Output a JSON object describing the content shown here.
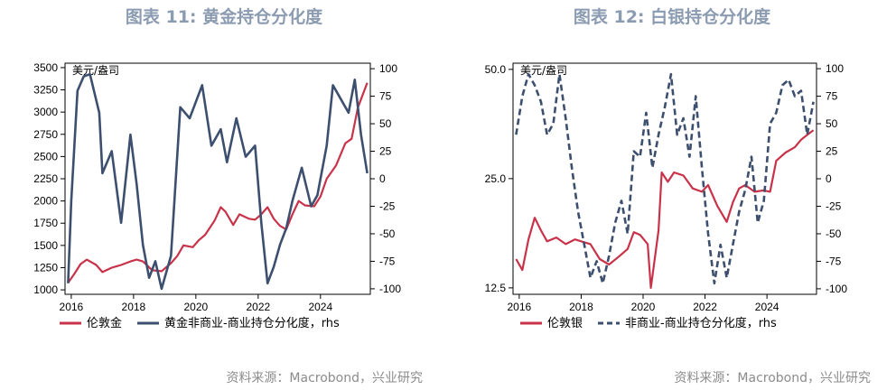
{
  "charts": [
    {
      "title": "图表 11: 黄金持仓分化度",
      "source": "资料来源：Macrobond，兴业研究",
      "unit_label": "美元/盎司",
      "legend": [
        "伦敦金",
        "黄金非商业-商业持仓分化度，rhs"
      ]
    },
    {
      "title": "图表 12: 白银持仓分化度",
      "source": "资料来源：Macrobond，兴业研究",
      "unit_label": "美元/盎司",
      "legend": [
        "伦敦银",
        "非商业-商业持仓分化度，rhs"
      ]
    }
  ],
  "colors": {
    "price": "#c8334a",
    "positioning": "#3d4f6e",
    "title": "#8b9bb1"
  },
  "chart_data": [
    {
      "type": "line",
      "x_ticks": [
        "2016",
        "2018",
        "2020",
        "2022",
        "2024"
      ],
      "xlim": [
        2015.8,
        2025.6
      ],
      "y_left": {
        "lim": [
          950,
          3550
        ],
        "ticks": [
          "1000",
          "1250",
          "1500",
          "1750",
          "2000",
          "2250",
          "2500",
          "2750",
          "3000",
          "3250",
          "3500"
        ],
        "tick_values": [
          1000,
          1250,
          1500,
          1750,
          2000,
          2250,
          2500,
          2750,
          3000,
          3250,
          3500
        ]
      },
      "y_right": {
        "lim": [
          -105,
          105
        ],
        "ticks": [
          "-100",
          "-75",
          "-50",
          "-25",
          "0",
          "25",
          "50",
          "75",
          "100"
        ],
        "tick_values": [
          -100,
          -75,
          -50,
          -25,
          0,
          25,
          50,
          75,
          100
        ]
      },
      "series": [
        {
          "name": "伦敦金",
          "axis": "left",
          "style": "solid",
          "x": [
            2015.9,
            2016.1,
            2016.3,
            2016.5,
            2016.8,
            2017.0,
            2017.3,
            2017.6,
            2017.9,
            2018.1,
            2018.3,
            2018.6,
            2018.9,
            2019.2,
            2019.4,
            2019.6,
            2019.9,
            2020.1,
            2020.3,
            2020.6,
            2020.8,
            2020.95,
            2021.2,
            2021.4,
            2021.7,
            2021.9,
            2022.1,
            2022.3,
            2022.5,
            2022.7,
            2022.9,
            2023.1,
            2023.3,
            2023.5,
            2023.8,
            2024.0,
            2024.2,
            2024.5,
            2024.8,
            2025.0,
            2025.2,
            2025.5
          ],
          "y": [
            1080,
            1180,
            1290,
            1340,
            1280,
            1200,
            1250,
            1280,
            1320,
            1340,
            1320,
            1220,
            1210,
            1300,
            1380,
            1500,
            1480,
            1560,
            1620,
            1780,
            1930,
            1880,
            1730,
            1850,
            1800,
            1790,
            1850,
            1930,
            1800,
            1720,
            1680,
            1850,
            2000,
            1950,
            1940,
            2050,
            2250,
            2400,
            2650,
            2700,
            3050,
            3330
          ]
        },
        {
          "name": "黄金非商业-商业持仓分化度，rhs",
          "axis": "right",
          "style": "solid",
          "x": [
            2015.9,
            2016.0,
            2016.2,
            2016.4,
            2016.6,
            2016.9,
            2017.0,
            2017.3,
            2017.6,
            2017.9,
            2018.1,
            2018.3,
            2018.5,
            2018.7,
            2018.9,
            2019.2,
            2019.5,
            2019.8,
            2020.0,
            2020.2,
            2020.5,
            2020.8,
            2021.0,
            2021.3,
            2021.6,
            2021.9,
            2022.1,
            2022.3,
            2022.5,
            2022.7,
            2022.9,
            2023.1,
            2023.4,
            2023.7,
            2023.9,
            2024.2,
            2024.4,
            2024.7,
            2024.9,
            2025.1,
            2025.3,
            2025.5
          ],
          "y": [
            -95,
            -20,
            80,
            93,
            95,
            60,
            5,
            25,
            -40,
            40,
            -5,
            -60,
            -90,
            -75,
            -100,
            -70,
            65,
            55,
            70,
            85,
            30,
            45,
            15,
            55,
            20,
            30,
            -40,
            -95,
            -80,
            -60,
            -45,
            -20,
            10,
            -25,
            -15,
            30,
            85,
            70,
            60,
            90,
            40,
            5
          ]
        }
      ]
    },
    {
      "type": "line",
      "x_ticks": [
        "2016",
        "2018",
        "2020",
        "2022",
        "2024"
      ],
      "xlim": [
        2015.8,
        2025.6
      ],
      "y_left": {
        "lim": [
          12.0,
          52.0
        ],
        "log": true,
        "ticks": [
          "12.5",
          "25.0",
          "50.0"
        ],
        "tick_values": [
          12.5,
          25.0,
          50.0
        ]
      },
      "y_right": {
        "lim": [
          -105,
          105
        ],
        "ticks": [
          "-100",
          "-75",
          "-50",
          "-25",
          "0",
          "25",
          "50",
          "75",
          "100"
        ],
        "tick_values": [
          -100,
          -75,
          -50,
          -25,
          0,
          25,
          50,
          75,
          100
        ]
      },
      "series": [
        {
          "name": "伦敦银",
          "axis": "left",
          "style": "solid",
          "x": [
            2015.9,
            2016.1,
            2016.3,
            2016.5,
            2016.7,
            2016.9,
            2017.2,
            2017.5,
            2017.8,
            2018.0,
            2018.3,
            2018.6,
            2018.9,
            2019.2,
            2019.5,
            2019.7,
            2019.9,
            2020.15,
            2020.25,
            2020.5,
            2020.6,
            2020.8,
            2021.0,
            2021.3,
            2021.6,
            2021.9,
            2022.1,
            2022.4,
            2022.7,
            2022.9,
            2023.1,
            2023.3,
            2023.6,
            2023.9,
            2024.1,
            2024.3,
            2024.6,
            2024.9,
            2025.1,
            2025.3,
            2025.5
          ],
          "y": [
            15.0,
            14.0,
            17.0,
            19.5,
            18.0,
            16.8,
            17.2,
            16.5,
            17.0,
            16.8,
            16.5,
            15.0,
            14.5,
            15.2,
            16.0,
            17.8,
            17.5,
            16.5,
            12.5,
            18.0,
            26.0,
            24.5,
            26.0,
            25.5,
            23.5,
            23.0,
            24.0,
            21.0,
            19.0,
            21.5,
            23.5,
            24.0,
            23.0,
            23.2,
            23.0,
            28.0,
            29.5,
            30.5,
            32.0,
            33.0,
            34.0
          ]
        },
        {
          "name": "非商业-商业持仓分化度，rhs",
          "axis": "right",
          "style": "dashed",
          "x": [
            2015.9,
            2016.1,
            2016.3,
            2016.5,
            2016.7,
            2016.9,
            2017.1,
            2017.3,
            2017.5,
            2017.7,
            2017.9,
            2018.1,
            2018.3,
            2018.5,
            2018.7,
            2018.9,
            2019.1,
            2019.3,
            2019.5,
            2019.7,
            2019.9,
            2020.1,
            2020.3,
            2020.5,
            2020.7,
            2020.9,
            2021.1,
            2021.3,
            2021.5,
            2021.7,
            2021.9,
            2022.1,
            2022.3,
            2022.5,
            2022.7,
            2022.9,
            2023.1,
            2023.3,
            2023.5,
            2023.7,
            2023.9,
            2024.1,
            2024.3,
            2024.5,
            2024.7,
            2024.9,
            2025.1,
            2025.3,
            2025.5
          ],
          "y": [
            40,
            75,
            95,
            85,
            70,
            40,
            50,
            95,
            55,
            10,
            -30,
            -60,
            -90,
            -75,
            -95,
            -70,
            -40,
            -20,
            -50,
            25,
            20,
            60,
            10,
            40,
            65,
            95,
            40,
            55,
            20,
            75,
            10,
            -50,
            -95,
            -60,
            -90,
            -60,
            -30,
            -10,
            20,
            -40,
            -20,
            50,
            60,
            85,
            90,
            75,
            80,
            40,
            70
          ]
        }
      ]
    }
  ]
}
